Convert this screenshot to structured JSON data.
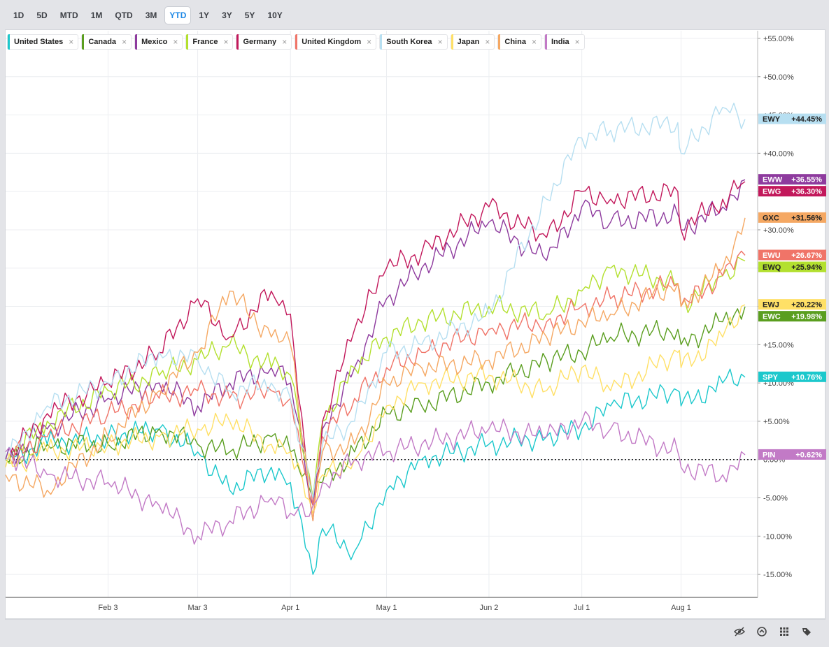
{
  "toolbar": {
    "ranges": [
      "1D",
      "5D",
      "MTD",
      "1M",
      "QTD",
      "3M",
      "YTD",
      "1Y",
      "3Y",
      "5Y",
      "10Y"
    ],
    "active": "YTD"
  },
  "footer_icons": [
    "hide-icon",
    "compare-icon",
    "grid-icon",
    "tags-icon"
  ],
  "chart_data": {
    "type": "line",
    "x_ticks": [
      "Feb 3",
      "Mar 3",
      "Apr 1",
      "May 1",
      "Jun 2",
      "Jul 1",
      "Aug 1"
    ],
    "y_ticks": [
      "-15.00%",
      "-10.00%",
      "-5.00%",
      "0.00%",
      "+5.00%",
      "+10.00%",
      "+15.00%",
      "+20.00%",
      "+25.00%",
      "+30.00%",
      "+35.00%",
      "+40.00%",
      "+45.00%",
      "+50.00%",
      "+55.00%"
    ],
    "ylim": [
      -18,
      56
    ],
    "y_unit": "%",
    "x_start": "2025-01-02",
    "x_end": "2025-08-21",
    "grid": true,
    "baseline": 0,
    "legend_position": "top-left",
    "series": [
      {
        "name": "United States",
        "ticker": "SPY",
        "color": "#1cc8cc",
        "final_label": "+10.76%",
        "points": [
          [
            "2025-01-02",
            0
          ],
          [
            "2025-01-15",
            2
          ],
          [
            "2025-02-03",
            3
          ],
          [
            "2025-02-19",
            4
          ],
          [
            "2025-03-03",
            1
          ],
          [
            "2025-03-13",
            -4
          ],
          [
            "2025-03-26",
            -1
          ],
          [
            "2025-04-01",
            -3
          ],
          [
            "2025-04-08",
            -15
          ],
          [
            "2025-04-11",
            -9
          ],
          [
            "2025-04-21",
            -12
          ],
          [
            "2025-05-01",
            -4
          ],
          [
            "2025-05-12",
            0
          ],
          [
            "2025-06-02",
            2
          ],
          [
            "2025-06-20",
            3
          ],
          [
            "2025-07-01",
            4
          ],
          [
            "2025-07-10",
            7
          ],
          [
            "2025-07-31",
            9
          ],
          [
            "2025-08-01",
            7
          ],
          [
            "2025-08-14",
            10
          ],
          [
            "2025-08-21",
            10.76
          ]
        ]
      },
      {
        "name": "Canada",
        "ticker": "EWC",
        "color": "#5a9e1f",
        "final_label": "+19.98%",
        "points": [
          [
            "2025-01-02",
            0
          ],
          [
            "2025-01-15",
            2
          ],
          [
            "2025-02-03",
            2
          ],
          [
            "2025-02-19",
            4
          ],
          [
            "2025-03-03",
            2
          ],
          [
            "2025-03-13",
            1
          ],
          [
            "2025-03-26",
            3
          ],
          [
            "2025-04-01",
            1
          ],
          [
            "2025-04-08",
            -5
          ],
          [
            "2025-04-11",
            -3
          ],
          [
            "2025-04-21",
            1
          ],
          [
            "2025-05-01",
            6
          ],
          [
            "2025-05-12",
            7
          ],
          [
            "2025-06-02",
            10
          ],
          [
            "2025-06-20",
            13
          ],
          [
            "2025-07-01",
            14
          ],
          [
            "2025-07-10",
            16
          ],
          [
            "2025-07-31",
            17
          ],
          [
            "2025-08-01",
            15
          ],
          [
            "2025-08-14",
            18
          ],
          [
            "2025-08-21",
            19.98
          ]
        ]
      },
      {
        "name": "Mexico",
        "ticker": "EWW",
        "color": "#8e3b9e",
        "final_label": "+36.55%",
        "points": [
          [
            "2025-01-02",
            0
          ],
          [
            "2025-01-15",
            4
          ],
          [
            "2025-02-03",
            8
          ],
          [
            "2025-02-19",
            10
          ],
          [
            "2025-03-03",
            7
          ],
          [
            "2025-03-13",
            10
          ],
          [
            "2025-03-26",
            12
          ],
          [
            "2025-04-01",
            10
          ],
          [
            "2025-04-08",
            -6
          ],
          [
            "2025-04-11",
            4
          ],
          [
            "2025-04-21",
            12
          ],
          [
            "2025-05-01",
            21
          ],
          [
            "2025-05-12",
            25
          ],
          [
            "2025-06-02",
            31
          ],
          [
            "2025-06-20",
            26
          ],
          [
            "2025-07-01",
            33
          ],
          [
            "2025-07-10",
            31
          ],
          [
            "2025-07-31",
            32
          ],
          [
            "2025-08-01",
            30
          ],
          [
            "2025-08-14",
            33
          ],
          [
            "2025-08-21",
            36.55
          ]
        ]
      },
      {
        "name": "France",
        "ticker": "EWQ",
        "color": "#b3e02f",
        "final_label": "+25.94%",
        "points": [
          [
            "2025-01-02",
            0
          ],
          [
            "2025-01-15",
            5
          ],
          [
            "2025-02-03",
            9
          ],
          [
            "2025-02-19",
            11
          ],
          [
            "2025-03-03",
            13
          ],
          [
            "2025-03-13",
            15
          ],
          [
            "2025-03-26",
            12
          ],
          [
            "2025-04-01",
            11
          ],
          [
            "2025-04-08",
            -5
          ],
          [
            "2025-04-11",
            5
          ],
          [
            "2025-04-21",
            12
          ],
          [
            "2025-05-01",
            16
          ],
          [
            "2025-05-12",
            18
          ],
          [
            "2025-06-02",
            20
          ],
          [
            "2025-06-20",
            19
          ],
          [
            "2025-07-01",
            22
          ],
          [
            "2025-07-10",
            25
          ],
          [
            "2025-07-31",
            23
          ],
          [
            "2025-08-01",
            20
          ],
          [
            "2025-08-14",
            24
          ],
          [
            "2025-08-21",
            25.94
          ]
        ]
      },
      {
        "name": "Germany",
        "ticker": "EWG",
        "color": "#c2185b",
        "final_label": "+36.30%",
        "points": [
          [
            "2025-01-02",
            0
          ],
          [
            "2025-01-15",
            6
          ],
          [
            "2025-02-03",
            10
          ],
          [
            "2025-02-19",
            14
          ],
          [
            "2025-03-03",
            21
          ],
          [
            "2025-03-13",
            16
          ],
          [
            "2025-03-26",
            22
          ],
          [
            "2025-04-01",
            19
          ],
          [
            "2025-04-08",
            -8
          ],
          [
            "2025-04-11",
            5
          ],
          [
            "2025-04-21",
            17
          ],
          [
            "2025-05-01",
            25
          ],
          [
            "2025-05-12",
            27
          ],
          [
            "2025-06-02",
            33
          ],
          [
            "2025-06-20",
            29
          ],
          [
            "2025-07-01",
            35
          ],
          [
            "2025-07-10",
            34
          ],
          [
            "2025-07-31",
            35
          ],
          [
            "2025-08-01",
            30
          ],
          [
            "2025-08-14",
            34
          ],
          [
            "2025-08-21",
            36.3
          ]
        ]
      },
      {
        "name": "United Kingdom",
        "ticker": "EWU",
        "color": "#f07468",
        "final_label": "+26.67%",
        "points": [
          [
            "2025-01-02",
            0
          ],
          [
            "2025-01-15",
            3
          ],
          [
            "2025-02-03",
            6
          ],
          [
            "2025-02-19",
            8
          ],
          [
            "2025-03-03",
            9
          ],
          [
            "2025-03-13",
            8
          ],
          [
            "2025-03-26",
            9
          ],
          [
            "2025-04-01",
            8
          ],
          [
            "2025-04-08",
            -6
          ],
          [
            "2025-04-11",
            3
          ],
          [
            "2025-04-21",
            8
          ],
          [
            "2025-05-01",
            12
          ],
          [
            "2025-05-12",
            14
          ],
          [
            "2025-06-02",
            17
          ],
          [
            "2025-06-20",
            18
          ],
          [
            "2025-07-01",
            20
          ],
          [
            "2025-07-10",
            21
          ],
          [
            "2025-07-31",
            23
          ],
          [
            "2025-08-01",
            20
          ],
          [
            "2025-08-14",
            24
          ],
          [
            "2025-08-21",
            26.67
          ]
        ]
      },
      {
        "name": "South Korea",
        "ticker": "EWY",
        "color": "#b7dff1",
        "final_label": "+44.45%",
        "points": [
          [
            "2025-01-02",
            0
          ],
          [
            "2025-01-15",
            7
          ],
          [
            "2025-02-03",
            10
          ],
          [
            "2025-02-19",
            14
          ],
          [
            "2025-03-03",
            13
          ],
          [
            "2025-03-13",
            9
          ],
          [
            "2025-03-26",
            10
          ],
          [
            "2025-04-01",
            8
          ],
          [
            "2025-04-08",
            -5
          ],
          [
            "2025-04-11",
            2
          ],
          [
            "2025-04-21",
            5
          ],
          [
            "2025-05-01",
            14
          ],
          [
            "2025-05-12",
            15
          ],
          [
            "2025-06-02",
            19
          ],
          [
            "2025-06-20",
            34
          ],
          [
            "2025-07-01",
            42
          ],
          [
            "2025-07-10",
            43
          ],
          [
            "2025-07-31",
            44
          ],
          [
            "2025-08-01",
            40
          ],
          [
            "2025-08-14",
            46
          ],
          [
            "2025-08-21",
            44.45
          ]
        ]
      },
      {
        "name": "Japan",
        "ticker": "EWJ",
        "color": "#ffe066",
        "final_label": "+20.22%",
        "points": [
          [
            "2025-01-02",
            -1
          ],
          [
            "2025-01-15",
            1
          ],
          [
            "2025-02-03",
            2
          ],
          [
            "2025-02-19",
            3
          ],
          [
            "2025-03-03",
            4
          ],
          [
            "2025-03-13",
            5
          ],
          [
            "2025-03-26",
            2
          ],
          [
            "2025-04-01",
            1
          ],
          [
            "2025-04-08",
            -7
          ],
          [
            "2025-04-11",
            -2
          ],
          [
            "2025-04-21",
            0
          ],
          [
            "2025-05-01",
            7
          ],
          [
            "2025-05-12",
            10
          ],
          [
            "2025-06-02",
            11
          ],
          [
            "2025-06-20",
            9
          ],
          [
            "2025-07-01",
            12
          ],
          [
            "2025-07-10",
            9
          ],
          [
            "2025-07-31",
            14
          ],
          [
            "2025-08-01",
            12
          ],
          [
            "2025-08-14",
            16
          ],
          [
            "2025-08-21",
            20.22
          ]
        ]
      },
      {
        "name": "China",
        "ticker": "GXC",
        "color": "#f5a863",
        "final_label": "+31.56%",
        "points": [
          [
            "2025-01-02",
            -2
          ],
          [
            "2025-01-15",
            -4
          ],
          [
            "2025-02-03",
            3
          ],
          [
            "2025-02-19",
            9
          ],
          [
            "2025-03-03",
            14
          ],
          [
            "2025-03-13",
            22
          ],
          [
            "2025-03-26",
            16
          ],
          [
            "2025-04-01",
            15
          ],
          [
            "2025-04-08",
            -8
          ],
          [
            "2025-04-11",
            1
          ],
          [
            "2025-04-21",
            2
          ],
          [
            "2025-05-01",
            10
          ],
          [
            "2025-05-12",
            12
          ],
          [
            "2025-06-02",
            13
          ],
          [
            "2025-06-20",
            16
          ],
          [
            "2025-07-01",
            18
          ],
          [
            "2025-07-10",
            19
          ],
          [
            "2025-07-31",
            23
          ],
          [
            "2025-08-01",
            20
          ],
          [
            "2025-08-14",
            25
          ],
          [
            "2025-08-21",
            31.56
          ]
        ]
      },
      {
        "name": "India",
        "ticker": "PIN",
        "color": "#c27ac6",
        "final_label": "+0.62%",
        "points": [
          [
            "2025-01-02",
            1
          ],
          [
            "2025-01-15",
            -2
          ],
          [
            "2025-02-03",
            -3
          ],
          [
            "2025-02-19",
            -6
          ],
          [
            "2025-03-03",
            -10
          ],
          [
            "2025-03-13",
            -8
          ],
          [
            "2025-03-26",
            -5
          ],
          [
            "2025-04-01",
            -7
          ],
          [
            "2025-04-08",
            -6
          ],
          [
            "2025-04-11",
            -3
          ],
          [
            "2025-04-21",
            0
          ],
          [
            "2025-05-01",
            1
          ],
          [
            "2025-05-12",
            2
          ],
          [
            "2025-06-02",
            4
          ],
          [
            "2025-06-20",
            3
          ],
          [
            "2025-07-01",
            5
          ],
          [
            "2025-07-10",
            4
          ],
          [
            "2025-07-31",
            1
          ],
          [
            "2025-08-01",
            -1
          ],
          [
            "2025-08-14",
            -2
          ],
          [
            "2025-08-21",
            0.62
          ]
        ]
      }
    ]
  }
}
